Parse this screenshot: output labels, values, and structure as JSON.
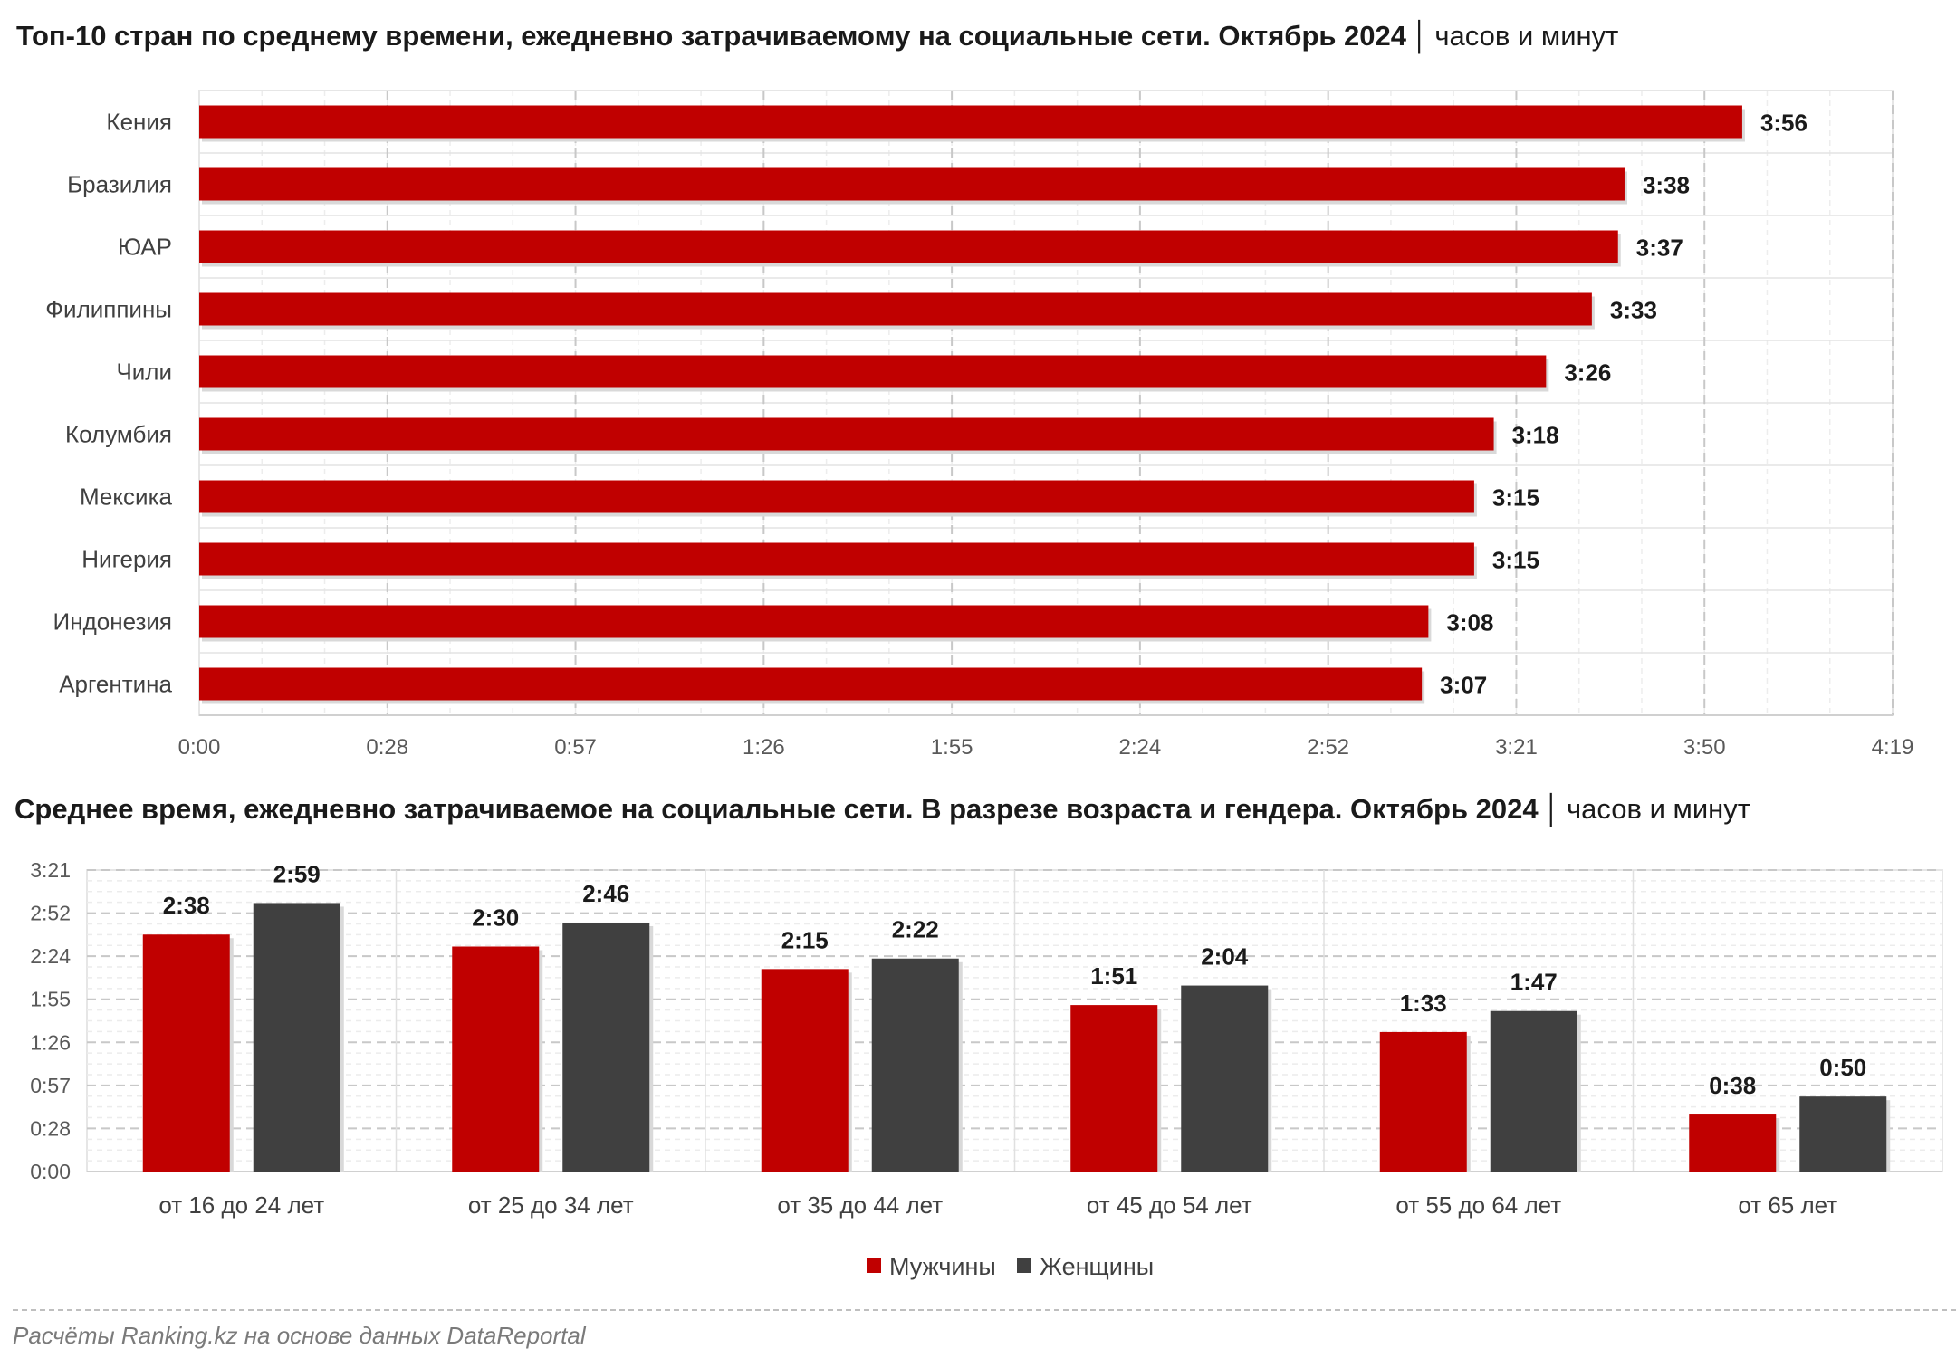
{
  "title1": {
    "main": "Топ-10 стран по среднему времени, ежедневно затрачиваемому на социальные сети. Октябрь 2024",
    "unit": "часов и минут"
  },
  "title2": {
    "main": "Среднее время, ежедневно затрачиваемое на социальные сети. В разрезе возраста и гендера. Октябрь 2024",
    "unit": "часов и минут"
  },
  "source": "Расчёты Ranking.kz на основе данных DataReportal",
  "colors": {
    "red": "#c00000",
    "dark": "#404040",
    "grid": "#d9d9d9",
    "text": "#1a1a1a",
    "axis_text": "#595959"
  },
  "chart_data": [
    {
      "type": "bar",
      "orientation": "horizontal",
      "categories": [
        "Кения",
        "Бразилия",
        "ЮАР",
        "Филиппины",
        "Чили",
        "Колумбия",
        "Мексика",
        "Нигерия",
        "Индонезия",
        "Аргентина"
      ],
      "values_min": [
        236,
        218,
        217,
        213,
        206,
        198,
        195,
        195,
        188,
        187
      ],
      "data_labels": [
        "3:56",
        "3:38",
        "3:37",
        "3:33",
        "3:26",
        "3:18",
        "3:15",
        "3:15",
        "3:08",
        "3:07"
      ],
      "xlim_min": [
        0,
        259
      ],
      "x_ticks": [
        "0:00",
        "0:28",
        "0:57",
        "1:26",
        "1:55",
        "2:24",
        "2:52",
        "3:21",
        "3:50",
        "4:19"
      ],
      "color": "#c00000",
      "grid": true
    },
    {
      "type": "bar",
      "orientation": "vertical",
      "categories": [
        "от 16 до 24 лет",
        "от 25 до 34 лет",
        "от 35 до 44 лет",
        "от 45 до 54 лет",
        "от 55 до 64 лет",
        "от 65 лет"
      ],
      "series": [
        {
          "name": "Мужчины",
          "color": "#c00000",
          "values_min": [
            158,
            150,
            135,
            111,
            93,
            38
          ],
          "data_labels": [
            "2:38",
            "2:30",
            "2:15",
            "1:51",
            "1:33",
            "0:38"
          ]
        },
        {
          "name": "Женщины",
          "color": "#404040",
          "values_min": [
            179,
            166,
            142,
            124,
            107,
            50
          ],
          "data_labels": [
            "2:59",
            "2:46",
            "2:22",
            "2:04",
            "1:47",
            "0:50"
          ]
        }
      ],
      "ylim_min": [
        0,
        201
      ],
      "y_ticks": [
        "0:00",
        "0:28",
        "0:57",
        "1:26",
        "1:55",
        "2:24",
        "2:52",
        "3:21"
      ],
      "legend_position": "bottom",
      "grid": true
    }
  ]
}
